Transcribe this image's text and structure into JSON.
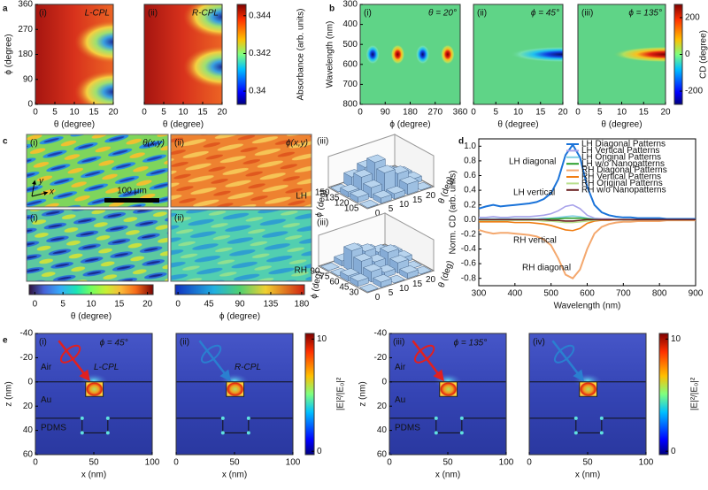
{
  "chart_data": [
    {
      "type": "heatmap",
      "panel": "a",
      "tag": "(i)",
      "note": "L-CPL",
      "xlabel": "θ (degree)",
      "ylabel": "ϕ (degree)",
      "xlim": [
        0,
        20
      ],
      "xticks": [
        0,
        5,
        10,
        15,
        20
      ],
      "ylim": [
        0,
        360
      ],
      "yticks": [
        0,
        90,
        180,
        270,
        360
      ]
    },
    {
      "type": "heatmap",
      "tag": "(ii)",
      "note": "R-CPL",
      "xlabel": "θ (degree)",
      "xlim": [
        0,
        20
      ],
      "xticks": [
        0,
        5,
        10,
        15,
        20
      ]
    },
    {
      "type": "colorbar",
      "ylabel": "Absorbance (arb. units)",
      "ylim": [
        0.3393,
        0.3446
      ],
      "yticks": [
        0.34,
        0.342,
        0.344
      ]
    },
    {
      "type": "heatmap",
      "panel": "b",
      "tag": "(i)",
      "note": "θ = 20°",
      "xlabel": "ϕ (degree)",
      "ylabel": "Wavelength (nm)",
      "xlim": [
        0,
        360
      ],
      "xticks": [
        0,
        90,
        180,
        270,
        360
      ],
      "ylim": [
        800,
        300
      ],
      "yticks": [
        300,
        400,
        500,
        600,
        700,
        800
      ]
    },
    {
      "type": "heatmap",
      "tag": "(ii)",
      "note": "ϕ = 45°",
      "xlabel": "θ (degree)",
      "xlim": [
        0,
        20
      ],
      "xticks": [
        0,
        5,
        10,
        15,
        20
      ]
    },
    {
      "type": "heatmap",
      "tag": "(iii)",
      "note": "ϕ = 135°",
      "xlabel": "θ (degree)",
      "xlim": [
        0,
        20
      ],
      "xticks": [
        0,
        5,
        10,
        15,
        20
      ]
    },
    {
      "type": "colorbar",
      "ylabel": "CD (degree)",
      "ylim": [
        -272,
        272
      ],
      "yticks": [
        -200,
        0,
        200
      ]
    },
    {
      "type": "image",
      "panel": "c",
      "tag": "(i)",
      "note": "θ(x,y)",
      "scale": "100 μm",
      "axes": [
        "x",
        "y"
      ]
    },
    {
      "type": "image",
      "tag": "(ii)",
      "note": "ϕ(x,y)",
      "side": "LH"
    },
    {
      "type": "image",
      "tag": "(i)"
    },
    {
      "type": "image",
      "tag": "(ii)",
      "side": "RH"
    },
    {
      "type": "colorbar",
      "xlabel": "θ (degree)",
      "xlim": [
        -1,
        21
      ],
      "xticks": [
        0,
        5,
        10,
        15,
        20
      ]
    },
    {
      "type": "colorbar",
      "xlabel": "ϕ (degree)",
      "xlim": [
        -4,
        184
      ],
      "xticks": [
        0,
        45,
        90,
        135,
        180
      ]
    },
    {
      "type": "bar3d",
      "tag": "(iii)",
      "xlabel": "θ (deg)",
      "ylabel": "ϕ (deg)",
      "xticks": [
        0,
        5,
        10,
        15,
        20
      ],
      "yticks": [
        105,
        120,
        135,
        150
      ],
      "zlim": [
        0,
        6
      ],
      "values": [
        [
          0,
          1,
          1,
          2,
          0
        ],
        [
          1,
          2,
          4,
          3,
          1
        ],
        [
          1,
          3,
          5,
          2,
          1
        ],
        [
          0,
          2,
          3,
          1,
          0
        ]
      ],
      "color": "#b8d4ee"
    },
    {
      "type": "bar3d",
      "tag": "(iii)",
      "xlabel": "θ (deg)",
      "ylabel": "ϕ (deg)",
      "xticks": [
        0,
        5,
        10,
        15,
        20
      ],
      "yticks": [
        30,
        45,
        60,
        75,
        90
      ],
      "zlim": [
        0,
        6
      ],
      "values": [
        [
          0,
          1,
          0,
          1,
          0
        ],
        [
          1,
          2,
          1,
          2,
          0
        ],
        [
          1,
          3,
          2,
          3,
          1
        ],
        [
          0,
          4,
          3,
          2,
          1
        ],
        [
          0,
          1,
          2,
          1,
          0
        ]
      ],
      "color": "#b8d4ee"
    },
    {
      "type": "line",
      "panel": "d",
      "xlabel": "Wavelength (nm)",
      "ylabel": "Norm. CD (arb. units)",
      "xlim": [
        300,
        900
      ],
      "xticks": [
        300,
        400,
        500,
        600,
        700,
        800,
        900
      ],
      "ylim": [
        -0.9,
        1.1
      ],
      "yticks": [
        -0.8,
        -0.6,
        -0.4,
        -0.2,
        {
          "value": 0,
          "label": "0.0"
        },
        0.2,
        0.4,
        0.6,
        0.8,
        {
          "value": 1,
          "label": "1.0"
        }
      ],
      "annotations": [
        "LH diagonal",
        "LH vertical",
        "RH vertical",
        "RH diagonal"
      ],
      "x": [
        300,
        320,
        340,
        360,
        380,
        400,
        420,
        440,
        460,
        480,
        500,
        520,
        540,
        560,
        580,
        600,
        620,
        640,
        660,
        680,
        700,
        720,
        740,
        760,
        780,
        800,
        820,
        840,
        860,
        880,
        900
      ],
      "series": [
        {
          "name": "LH Diagonal Patterns",
          "color": "#1a73d9",
          "values": [
            0.15,
            0.18,
            0.2,
            0.18,
            0.19,
            0.2,
            0.21,
            0.22,
            0.24,
            0.28,
            0.36,
            0.55,
            0.88,
            1.02,
            0.85,
            0.45,
            0.2,
            0.1,
            0.06,
            0.04,
            0.03,
            0.03,
            0.02,
            0.02,
            0.02,
            0.02,
            0.01,
            0.01,
            0.01,
            0.01,
            0.01
          ]
        },
        {
          "name": "LH Vertical Patterns",
          "color": "#a8a2ea",
          "values": [
            0.03,
            0.03,
            0.04,
            0.03,
            0.03,
            0.04,
            0.04,
            0.04,
            0.05,
            0.06,
            0.08,
            0.12,
            0.18,
            0.2,
            0.15,
            0.06,
            0.02,
            0.01,
            0.01,
            0,
            0,
            0,
            0,
            0,
            0,
            0,
            0,
            0,
            0,
            0,
            0
          ]
        },
        {
          "name": "LH Original Patterns",
          "color": "#7fcfe3",
          "values": [
            0.01,
            0.01,
            0.01,
            0.01,
            0.01,
            0.01,
            0.01,
            0.01,
            0.01,
            0.02,
            0.02,
            0.03,
            0.04,
            0.05,
            0.04,
            0.02,
            0.01,
            0,
            0,
            0,
            0,
            0,
            0,
            0,
            0,
            0,
            0,
            0,
            0,
            0,
            0
          ]
        },
        {
          "name": "LH w/o Nanopatterns",
          "color": "#2ca02c",
          "values": [
            0,
            0,
            0,
            0,
            0,
            0,
            0,
            0,
            0,
            0,
            0.01,
            0.01,
            0.02,
            0.02,
            0.02,
            0.01,
            0,
            0,
            0,
            0,
            0,
            0,
            0,
            0,
            0,
            0,
            0,
            0,
            0,
            0,
            0
          ]
        },
        {
          "name": "RH Diagonal Patterns",
          "color": "#f4a86e",
          "values": [
            -0.14,
            -0.17,
            -0.19,
            -0.18,
            -0.18,
            -0.19,
            -0.2,
            -0.21,
            -0.23,
            -0.27,
            -0.35,
            -0.53,
            -0.75,
            -0.8,
            -0.68,
            -0.4,
            -0.19,
            -0.1,
            -0.06,
            -0.04,
            -0.03,
            -0.03,
            -0.02,
            -0.02,
            -0.02,
            -0.02,
            -0.01,
            -0.01,
            -0.01,
            -0.01,
            -0.01
          ]
        },
        {
          "name": "RH Vertical Patterns",
          "color": "#f07d12",
          "values": [
            -0.03,
            -0.03,
            -0.03,
            -0.03,
            -0.03,
            -0.04,
            -0.04,
            -0.04,
            -0.05,
            -0.06,
            -0.08,
            -0.11,
            -0.14,
            -0.15,
            -0.12,
            -0.05,
            -0.02,
            -0.01,
            -0.01,
            0,
            0,
            0,
            0,
            0,
            0,
            0,
            0,
            0,
            0,
            0,
            0
          ]
        },
        {
          "name": "RH Original Patterns",
          "color": "#b8e08c",
          "values": [
            -0.01,
            -0.01,
            -0.01,
            -0.01,
            -0.01,
            -0.01,
            -0.01,
            -0.01,
            -0.01,
            -0.02,
            -0.02,
            -0.03,
            -0.04,
            -0.04,
            -0.03,
            -0.02,
            -0.01,
            0,
            0,
            0,
            0,
            0,
            0,
            0,
            0,
            0,
            0,
            0,
            0,
            0,
            0
          ]
        },
        {
          "name": "RH w/o Nanopatterns",
          "color": "#6a1f1f",
          "values": [
            0,
            0,
            0,
            0,
            0,
            0,
            0,
            0,
            0,
            0,
            -0.01,
            -0.01,
            -0.02,
            -0.02,
            -0.01,
            0,
            0,
            0,
            0,
            0,
            0,
            0,
            0,
            0,
            0,
            0,
            0,
            0,
            0,
            0,
            0
          ]
        }
      ]
    },
    {
      "type": "map",
      "panel": "e",
      "tag": "(i)",
      "note": "ϕ = 45°",
      "beam": "L-CPL",
      "labels": [
        "Air",
        "Au",
        "PDMS"
      ],
      "xlabel": "x (nm)",
      "ylabel": "z (nm)",
      "xlim": [
        0,
        100
      ],
      "xticks": [
        0,
        50,
        100
      ],
      "ylim": [
        60,
        -40
      ],
      "yticks": [
        -40,
        -20,
        0,
        20,
        40,
        60
      ]
    },
    {
      "type": "map",
      "tag": "(ii)",
      "beam": "R-CPL",
      "xlabel": "x (nm)",
      "xlim": [
        0,
        100
      ],
      "xticks": [
        0,
        50,
        100
      ]
    },
    {
      "type": "colorbar",
      "ylabel": "|E|²/|E₀|²",
      "ylim": [
        -0.3,
        10.5
      ],
      "yticks": [
        0,
        10
      ]
    },
    {
      "type": "map",
      "tag": "(iii)",
      "note": "ϕ = 135°",
      "labels": [
        "Air",
        "Au",
        "PDMS"
      ],
      "xlabel": "x (nm)",
      "ylabel": "z (nm)",
      "xlim": [
        0,
        100
      ],
      "xticks": [
        0,
        50,
        100
      ],
      "ylim": [
        60,
        -40
      ],
      "yticks": [
        -40,
        -20,
        0,
        20,
        40,
        60
      ]
    },
    {
      "type": "map",
      "tag": "(iv)",
      "xlabel": "x (nm)",
      "xlim": [
        0,
        100
      ],
      "xticks": [
        0,
        50,
        100
      ]
    },
    {
      "type": "colorbar",
      "ylabel": "|E|²/|E₀|²",
      "ylim": [
        -0.3,
        10.5
      ],
      "yticks": [
        0,
        10
      ]
    }
  ]
}
